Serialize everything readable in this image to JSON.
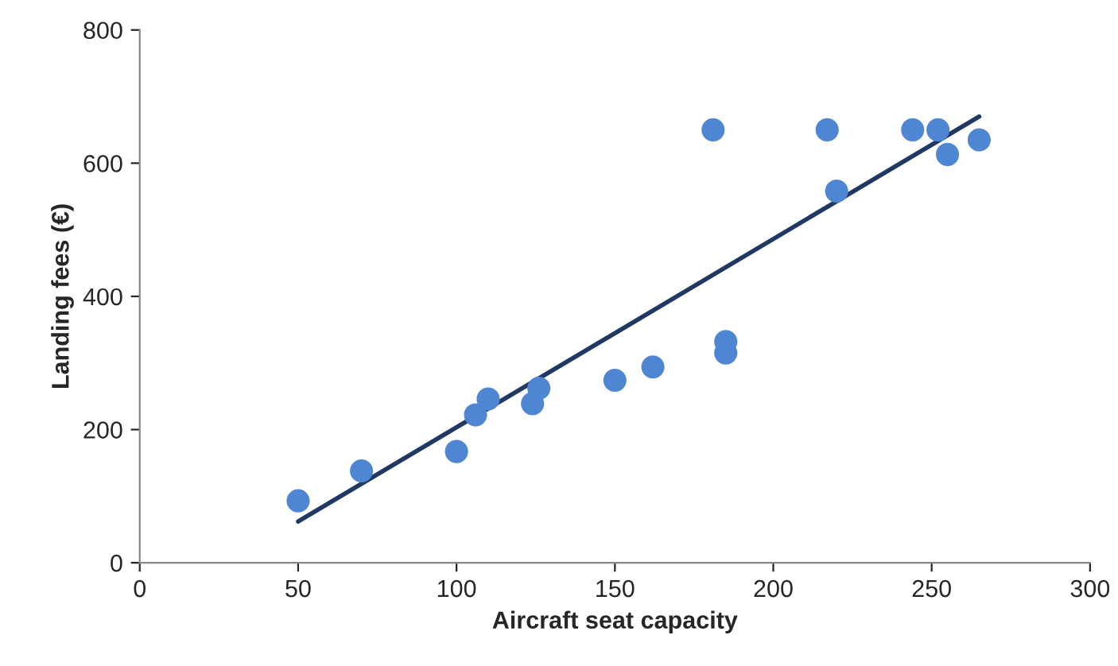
{
  "chart_data": {
    "type": "scatter",
    "xlabel": "Aircraft seat capacity",
    "ylabel": "Landing fees (€)",
    "xlim": [
      0,
      300
    ],
    "xticks": [
      0,
      50,
      100,
      150,
      200,
      250,
      300
    ],
    "ylim": [
      0,
      800
    ],
    "yticks": [
      0,
      200,
      400,
      600,
      800
    ],
    "grid": false,
    "legend": false,
    "marker": "circle",
    "series": [
      {
        "color": "#4f86d4",
        "x": [
          50,
          70,
          100,
          106,
          110,
          124,
          126,
          150,
          162,
          185,
          185,
          181,
          217,
          220,
          244,
          252,
          255,
          265
        ],
        "values": [
          93,
          138,
          167,
          222,
          246,
          239,
          262,
          274,
          294,
          332,
          315,
          650,
          650,
          558,
          650,
          650,
          613,
          635
        ]
      },
      {
        "type": "line",
        "color": "#1f3864",
        "x": [
          50,
          265
        ],
        "values": [
          62,
          670
        ],
        "marker": "none",
        "line_style": "solid"
      }
    ]
  }
}
